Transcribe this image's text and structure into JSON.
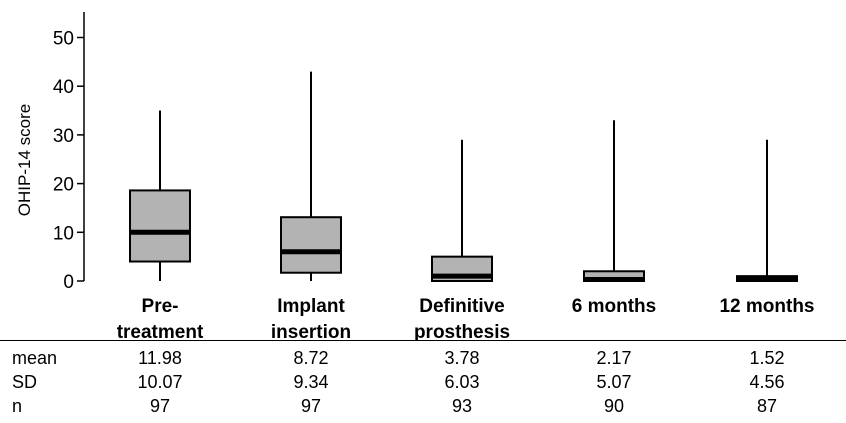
{
  "chart_data": {
    "type": "box",
    "ylabel": "OHIP-14 score",
    "ylim": [
      0,
      55
    ],
    "yticks": [
      0,
      10,
      20,
      30,
      40,
      50
    ],
    "categories": [
      {
        "lines": [
          "Pre-",
          "treatment"
        ]
      },
      {
        "lines": [
          "Implant",
          "insertion"
        ]
      },
      {
        "lines": [
          "Definitive",
          "prosthesis"
        ]
      },
      {
        "lines": [
          "6 months"
        ]
      },
      {
        "lines": [
          "12 months"
        ]
      }
    ],
    "boxes": [
      {
        "min": 0,
        "q1": 4,
        "median": 10,
        "q3": 18.6,
        "max": 35
      },
      {
        "min": 0,
        "q1": 1.7,
        "median": 6,
        "q3": 13.1,
        "max": 43
      },
      {
        "min": 0,
        "q1": 0,
        "median": 1,
        "q3": 5,
        "max": 29
      },
      {
        "min": 0,
        "q1": 0,
        "median": 0.3,
        "q3": 2,
        "max": 33
      },
      {
        "min": 0,
        "q1": 0,
        "median": 0.4,
        "q3": 1,
        "max": 29
      }
    ],
    "box_color": "#b3b3b3",
    "table": {
      "rows": [
        {
          "label": "mean",
          "values": [
            "11.98",
            "8.72",
            "3.78",
            "2.17",
            "1.52"
          ]
        },
        {
          "label": "SD",
          "values": [
            "10.07",
            "9.34",
            "6.03",
            "5.07",
            "4.56"
          ]
        },
        {
          "label": "n",
          "values": [
            "97",
            "97",
            "93",
            "90",
            "87"
          ]
        }
      ]
    }
  }
}
